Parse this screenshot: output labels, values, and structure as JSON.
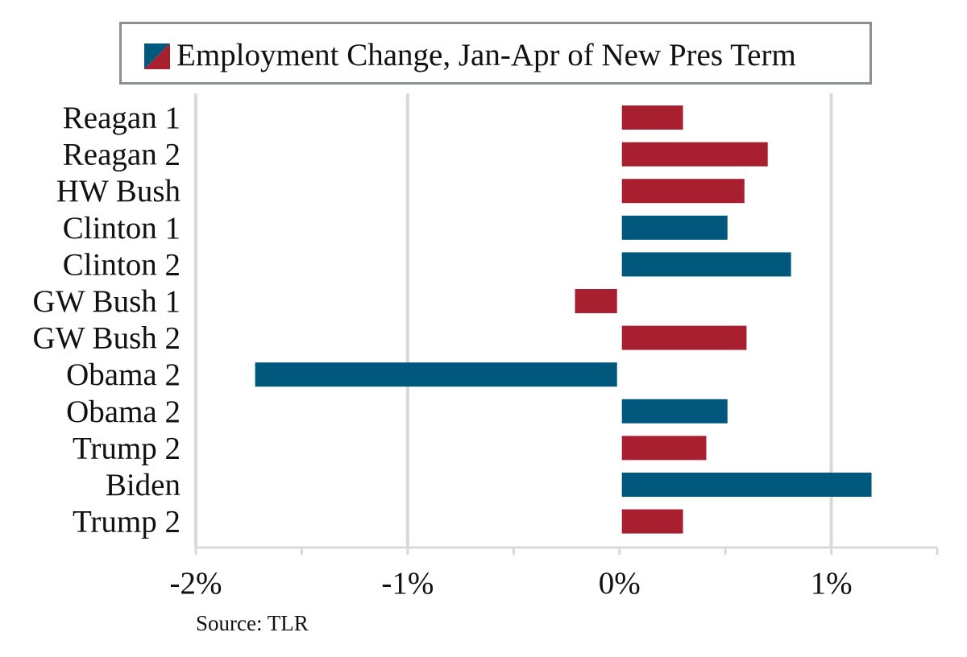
{
  "chart_data": {
    "type": "bar",
    "orientation": "horizontal",
    "categories": [
      "Reagan 1",
      "Reagan 2",
      "HW Bush",
      "Clinton 1",
      "Clinton 2",
      "GW Bush 1",
      "GW Bush 2",
      "Obama 2",
      "Obama 2",
      "Trump 2",
      "Biden",
      "Trump 2"
    ],
    "values": [
      0.3,
      0.7,
      0.59,
      0.51,
      0.81,
      -0.21,
      0.6,
      -1.72,
      0.51,
      0.41,
      1.19,
      0.3
    ],
    "party": [
      "R",
      "R",
      "R",
      "D",
      "D",
      "R",
      "R",
      "D",
      "D",
      "R",
      "D",
      "R"
    ],
    "legend": "Employment Change, Jan-Apr of New Pres Term",
    "xlim": [
      -2,
      1.5
    ],
    "xticks": [
      -2,
      -1,
      0,
      1
    ],
    "xtick_labels": [
      "-2%",
      "-1%",
      "0%",
      "1%"
    ],
    "grid": true,
    "legend_position": "top",
    "colors": {
      "R": "#a81f2f",
      "D": "#00597c",
      "grid": "#d9d9d9",
      "axis": "#d9d9d9"
    },
    "source": "Source: TLR"
  }
}
